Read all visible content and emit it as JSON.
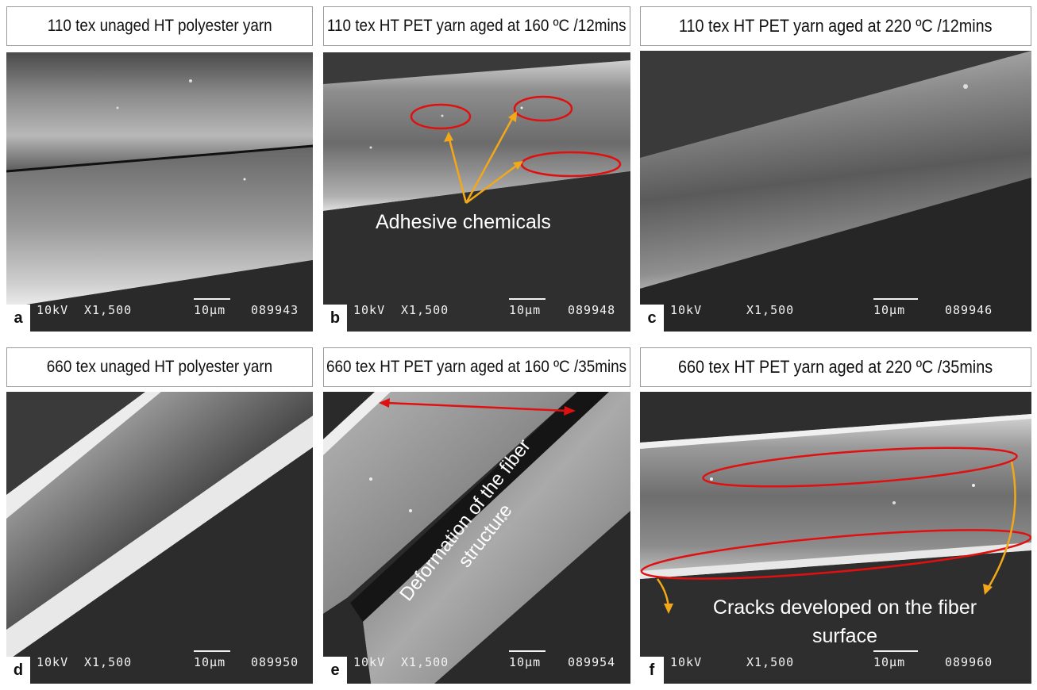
{
  "panels": [
    {
      "letter": "a",
      "title": "110 tex unaged HT polyester yarn",
      "info": {
        "kv": "10kV",
        "mag": "X1,500",
        "scale": "10µm",
        "id": "089943"
      }
    },
    {
      "letter": "b",
      "title": "110 tex HT PET yarn aged at 160 ºC /12mins",
      "info": {
        "kv": "10kV",
        "mag": "X1,500",
        "scale": "10µm",
        "id": "089948"
      }
    },
    {
      "letter": "c",
      "title": "110 tex HT PET yarn aged at 220 ºC /12mins",
      "info": {
        "kv": "10kV",
        "mag": "X1,500",
        "scale": "10µm",
        "id": "089946"
      }
    },
    {
      "letter": "d",
      "title": "660 tex unaged HT polyester yarn",
      "info": {
        "kv": "10kV",
        "mag": "X1,500",
        "scale": "10µm",
        "id": "089950"
      }
    },
    {
      "letter": "e",
      "title": "660 tex HT PET yarn aged at 160 ºC /35mins",
      "info": {
        "kv": "10kV",
        "mag": "X1,500",
        "scale": "10µm",
        "id": "089954"
      }
    },
    {
      "letter": "f",
      "title": "660 tex HT PET yarn aged at 220 ºC /35mins",
      "info": {
        "kv": "10kV",
        "mag": "X1,500",
        "scale": "10µm",
        "id": "089960"
      }
    }
  ],
  "annotations": {
    "adhesive": "Adhesive chemicals",
    "deformation_line1": "Deformation of the fiber",
    "deformation_line2": "structure",
    "cracks_line1": "Cracks developed on the fiber",
    "cracks_line2": "surface"
  },
  "colors": {
    "highlight_ellipse": "#e01010",
    "pointer_arrow": "#f2a818",
    "annotation_text": "#ffffff"
  }
}
